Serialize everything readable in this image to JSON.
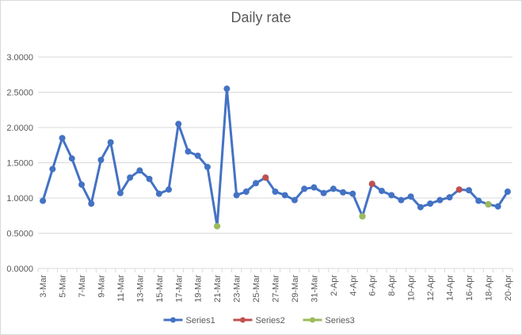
{
  "chart_data": {
    "type": "line",
    "title": "Daily rate",
    "xlabel": "",
    "ylabel": "",
    "ylim": [
      0,
      3
    ],
    "y_ticks": [
      "0.0000",
      "0.5000",
      "1.0000",
      "1.5000",
      "2.0000",
      "2.5000",
      "3.0000"
    ],
    "grid": "horizontal",
    "legend_position": "bottom",
    "dates": [
      "3-Mar",
      "4-Mar",
      "5-Mar",
      "6-Mar",
      "7-Mar",
      "8-Mar",
      "9-Mar",
      "10-Mar",
      "11-Mar",
      "12-Mar",
      "13-Mar",
      "14-Mar",
      "15-Mar",
      "16-Mar",
      "17-Mar",
      "18-Mar",
      "19-Mar",
      "20-Mar",
      "21-Mar",
      "22-Mar",
      "23-Mar",
      "24-Mar",
      "25-Mar",
      "26-Mar",
      "27-Mar",
      "28-Mar",
      "29-Mar",
      "30-Mar",
      "31-Mar",
      "1-Apr",
      "2-Apr",
      "3-Apr",
      "4-Apr",
      "5-Apr",
      "6-Apr",
      "7-Apr",
      "8-Apr",
      "9-Apr",
      "10-Apr",
      "11-Apr",
      "12-Apr",
      "13-Apr",
      "14-Apr",
      "15-Apr",
      "16-Apr",
      "17-Apr",
      "18-Apr",
      "19-Apr",
      "20-Apr"
    ],
    "x_tick_labels": [
      "3-Mar",
      "",
      "5-Mar",
      "",
      "7-Mar",
      "",
      "9-Mar",
      "",
      "11-Mar",
      "",
      "13-Mar",
      "",
      "15-Mar",
      "",
      "17-Mar",
      "",
      "19-Mar",
      "",
      "21-Mar",
      "",
      "23-Mar",
      "",
      "25-Mar",
      "",
      "27-Mar",
      "",
      "29-Mar",
      "",
      "31-Mar",
      "",
      "2-Apr",
      "",
      "4-Apr",
      "",
      "6-Apr",
      "",
      "8-Apr",
      "",
      "10-Apr",
      "",
      "12-Apr",
      "",
      "14-Apr",
      "",
      "16-Apr",
      "",
      "18-Apr",
      "",
      "20-Apr"
    ],
    "series": [
      {
        "name": "Series1",
        "color": "#4472C4",
        "values": [
          0.96,
          1.41,
          1.85,
          1.56,
          1.19,
          0.92,
          1.54,
          1.79,
          1.07,
          1.29,
          1.39,
          1.27,
          1.06,
          1.12,
          2.05,
          1.66,
          1.6,
          1.44,
          0.6,
          2.55,
          1.04,
          1.09,
          1.21,
          1.29,
          1.09,
          1.04,
          0.97,
          1.13,
          1.15,
          1.07,
          1.13,
          1.08,
          1.06,
          0.74,
          1.2,
          1.1,
          1.04,
          0.97,
          1.02,
          0.87,
          0.92,
          0.97,
          1.01,
          1.12,
          1.11,
          0.96,
          0.91,
          0.88,
          1.09
        ]
      },
      {
        "name": "Series2",
        "color": "#C0504D",
        "values": [
          null,
          null,
          null,
          null,
          null,
          null,
          null,
          null,
          null,
          null,
          null,
          null,
          null,
          null,
          null,
          null,
          null,
          null,
          null,
          null,
          null,
          null,
          null,
          1.29,
          null,
          null,
          null,
          null,
          null,
          null,
          null,
          null,
          null,
          null,
          1.2,
          null,
          null,
          null,
          null,
          null,
          null,
          null,
          null,
          1.12,
          null,
          null,
          null,
          null,
          null
        ]
      },
      {
        "name": "Series3",
        "color": "#9BBB59",
        "values": [
          null,
          null,
          null,
          null,
          null,
          null,
          null,
          null,
          null,
          null,
          null,
          null,
          null,
          null,
          null,
          null,
          null,
          null,
          0.6,
          null,
          null,
          null,
          null,
          null,
          null,
          null,
          null,
          null,
          null,
          null,
          null,
          null,
          null,
          0.74,
          null,
          null,
          null,
          null,
          null,
          null,
          null,
          null,
          null,
          null,
          null,
          null,
          0.91,
          null,
          null
        ]
      }
    ]
  }
}
